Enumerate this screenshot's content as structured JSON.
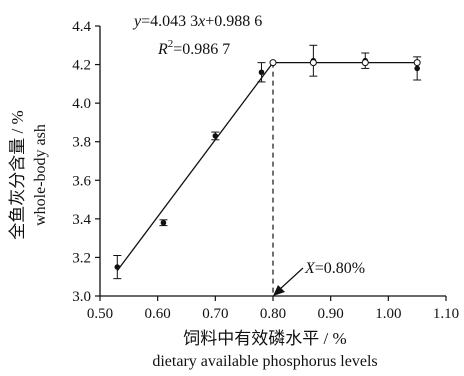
{
  "chart_data": {
    "type": "scatter",
    "xlabel_cn": "饲料中有效磷水平 / %",
    "xlabel_en": "dietary available phosphorus levels",
    "ylabel_cn": "全鱼灰分含量 / %",
    "ylabel_en": "whole-body ash",
    "xlim": [
      0.5,
      1.1
    ],
    "ylim": [
      3.0,
      4.4
    ],
    "xticks": [
      "0.50",
      "0.60",
      "0.70",
      "0.80",
      "0.90",
      "1.00",
      "1.10"
    ],
    "yticks": [
      "3.0",
      "3.2",
      "3.4",
      "3.6",
      "3.8",
      "4.0",
      "4.2",
      "4.4"
    ],
    "points": [
      {
        "x": 0.53,
        "y": 3.15,
        "err": 0.06
      },
      {
        "x": 0.61,
        "y": 3.38,
        "err": 0.015
      },
      {
        "x": 0.7,
        "y": 3.83,
        "err": 0.02
      },
      {
        "x": 0.78,
        "y": 4.16,
        "err": 0.05
      },
      {
        "x": 0.87,
        "y": 4.22,
        "err": 0.08
      },
      {
        "x": 0.96,
        "y": 4.22,
        "err": 0.04
      },
      {
        "x": 1.05,
        "y": 4.18,
        "err": 0.06
      }
    ],
    "plateau_points": [
      {
        "x": 0.8,
        "y": 4.21
      },
      {
        "x": 0.87,
        "y": 4.21
      },
      {
        "x": 0.96,
        "y": 4.21
      },
      {
        "x": 1.05,
        "y": 4.21
      }
    ],
    "fit_line": {
      "slope": 4.0433,
      "intercept": 0.9886,
      "x_start": 0.53,
      "x_break": 0.8,
      "x_end": 1.05,
      "plateau": 4.21
    },
    "equation": {
      "y_var": "y",
      "y_rest": "=4.043 3",
      "x_var": "x",
      "x_rest": "+0.988 6",
      "r_var": "R",
      "r_sup": "2",
      "r_rest": "=0.986 7"
    },
    "annotation": {
      "x_var": "X",
      "text": "=0.80%",
      "x": 0.8
    }
  }
}
